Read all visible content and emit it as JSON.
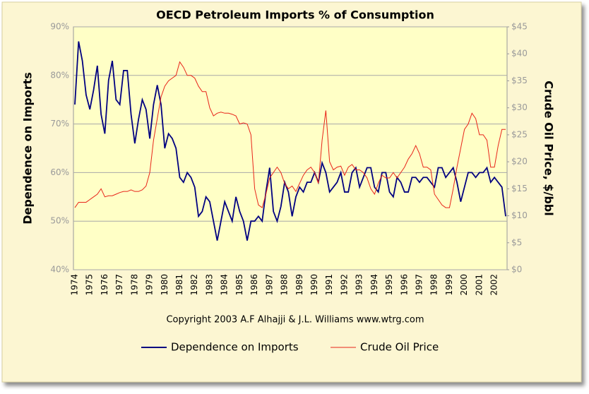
{
  "chart_data": {
    "type": "line",
    "title": "OECD Petroleum Imports % of Consumption",
    "y_label": "Dependence on Imports",
    "y2_label": "Crude Oil Price, $/bbl",
    "annotation": "Copyright 2003 A.F Alhajji & J.L. Williams www.wtrg.com",
    "categories": [
      "1974",
      null,
      null,
      null,
      "1975",
      null,
      null,
      null,
      "1976",
      null,
      null,
      null,
      "1977",
      null,
      null,
      null,
      "1978",
      null,
      null,
      null,
      "1979",
      null,
      null,
      null,
      "1980",
      null,
      null,
      null,
      "1981",
      null,
      null,
      null,
      "1982",
      null,
      null,
      null,
      "1983",
      null,
      null,
      null,
      "1984",
      null,
      null,
      null,
      "1985",
      null,
      null,
      null,
      "1986",
      null,
      null,
      null,
      "1987",
      null,
      null,
      null,
      "1988",
      null,
      null,
      null,
      "1989",
      null,
      null,
      null,
      "1990",
      null,
      null,
      null,
      "1991",
      null,
      null,
      null,
      "1992",
      null,
      null,
      null,
      "1993",
      null,
      null,
      null,
      "1994",
      null,
      null,
      null,
      "1995",
      null,
      null,
      null,
      "1996",
      null,
      null,
      null,
      "1997",
      null,
      null,
      null,
      "1998",
      null,
      null,
      null,
      "1999",
      null,
      null,
      null,
      "2000",
      null,
      null,
      null,
      "2001",
      null,
      null,
      null,
      "2002",
      null,
      null,
      null
    ],
    "series": [
      {
        "name": "Dependence on Imports",
        "color": "#000080",
        "axis": "y",
        "values": [
          74,
          87,
          83,
          76,
          73,
          77,
          82,
          72,
          68,
          79,
          83,
          75,
          74,
          81,
          81,
          72,
          66,
          71,
          75,
          73,
          67,
          74,
          78,
          74,
          65,
          68,
          67,
          65,
          59,
          58,
          60,
          59,
          57,
          51,
          52,
          55,
          54,
          50,
          46,
          50,
          54,
          52,
          50,
          55,
          52,
          50,
          46,
          50,
          50,
          51,
          50,
          56,
          61,
          52,
          50,
          53,
          58,
          56,
          51,
          55,
          57,
          56,
          58,
          58,
          60,
          58,
          62,
          60,
          56,
          57,
          58,
          60,
          56,
          56,
          60,
          61,
          57,
          59,
          61,
          61,
          57,
          56,
          60,
          60,
          56,
          55,
          59,
          58,
          56,
          56,
          59,
          59,
          58,
          59,
          59,
          58,
          57,
          61,
          61,
          59,
          60,
          61,
          58,
          54,
          57,
          60,
          60,
          59,
          60,
          60,
          61,
          58,
          59,
          58,
          57,
          51
        ]
      },
      {
        "name": "Crude Oil Price",
        "color": "#e8251a",
        "axis": "y2",
        "values": [
          11.5,
          12.5,
          12.5,
          12.5,
          13,
          13.5,
          14,
          15,
          13.5,
          13.7,
          13.7,
          14,
          14.3,
          14.5,
          14.5,
          14.8,
          14.5,
          14.5,
          14.8,
          15.5,
          18,
          24,
          28,
          32,
          34,
          35,
          35.5,
          36,
          38.5,
          37.5,
          36,
          36,
          35.5,
          34,
          33,
          33,
          30,
          28.5,
          29,
          29.2,
          29,
          29,
          28.8,
          28.5,
          27,
          27.2,
          27,
          25,
          15,
          12,
          11.5,
          14,
          17,
          18,
          19,
          18,
          16,
          15,
          15.5,
          14.5,
          16,
          17.5,
          18.5,
          19,
          18,
          16,
          24,
          29.5,
          20,
          18.5,
          19,
          19.2,
          17.5,
          19,
          19.5,
          18.5,
          18.5,
          18,
          17,
          15,
          14,
          16,
          17.5,
          17,
          17,
          18,
          17,
          18,
          19,
          20.5,
          21.5,
          23,
          21.5,
          19,
          19,
          18.5,
          14,
          13,
          12,
          11.5,
          11.5,
          15,
          19,
          22.5,
          26,
          27,
          29,
          28,
          25,
          25,
          24,
          19,
          19,
          23,
          26,
          26
        ]
      }
    ],
    "ylim": [
      40,
      90
    ],
    "yticks": [
      {
        "value": 40,
        "label": "40%"
      },
      {
        "value": 50,
        "label": "50%"
      },
      {
        "value": 60,
        "label": "60%"
      },
      {
        "value": 70,
        "label": "70%"
      },
      {
        "value": 80,
        "label": "80%"
      },
      {
        "value": 90,
        "label": "90%"
      }
    ],
    "y2lim": [
      0,
      45
    ],
    "y2ticks": [
      {
        "value": 0,
        "label": "$0"
      },
      {
        "value": 5,
        "label": "$5"
      },
      {
        "value": 10,
        "label": "$10"
      },
      {
        "value": 15,
        "label": "$15"
      },
      {
        "value": 20,
        "label": "$20"
      },
      {
        "value": 25,
        "label": "$25"
      },
      {
        "value": 30,
        "label": "$30"
      },
      {
        "value": 35,
        "label": "$35"
      },
      {
        "value": 40,
        "label": "$40"
      },
      {
        "value": 45,
        "label": "$45"
      }
    ],
    "grid": true,
    "legend": "bottom"
  }
}
